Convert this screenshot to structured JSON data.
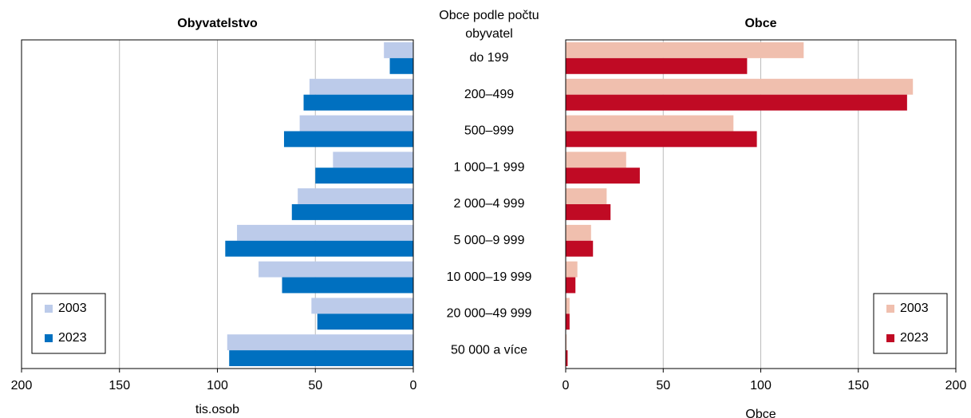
{
  "chart_data": [
    {
      "type": "bar",
      "orientation": "horizontal",
      "title": "Obyvatelstvo",
      "xlabel": "tis.osob",
      "category_title": "Obce podle počtu obyvatel",
      "categories": [
        "do 199",
        "200–499",
        "500–999",
        "1 000–1 999",
        "2 000–4 999",
        "5 000–9 999",
        "10 000–19 999",
        "20 000–49 999",
        "50 000 a více"
      ],
      "xlim": [
        200,
        0
      ],
      "xticks": [
        200,
        150,
        100,
        50,
        0
      ],
      "grid": true,
      "legend": "lower left",
      "series": [
        {
          "name": "2003",
          "color": "#bccbea",
          "values": [
            15,
            53,
            58,
            41,
            59,
            90,
            79,
            52,
            95
          ]
        },
        {
          "name": "2023",
          "color": "#0070c0",
          "values": [
            12,
            56,
            66,
            50,
            62,
            96,
            67,
            49,
            94
          ]
        }
      ]
    },
    {
      "type": "bar",
      "orientation": "horizontal",
      "title": "Obce",
      "xlabel": "Obce",
      "xlim": [
        0,
        200
      ],
      "xticks": [
        0,
        50,
        100,
        150,
        200
      ],
      "grid": true,
      "legend": "lower right",
      "series": [
        {
          "name": "2003",
          "color": "#f0bfae",
          "values": [
            122,
            178,
            86,
            31,
            21,
            13,
            6,
            2,
            0.5
          ]
        },
        {
          "name": "2023",
          "color": "#c00a24",
          "values": [
            93,
            175,
            98,
            38,
            23,
            14,
            5,
            2,
            1
          ]
        }
      ]
    }
  ]
}
